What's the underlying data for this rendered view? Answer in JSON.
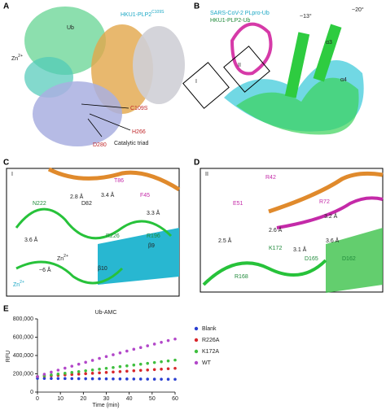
{
  "panels": [
    {
      "label": "A",
      "texts": [
        "Ub",
        "HKU1-PLP2",
        "C109S",
        "Zn",
        "2+",
        "C109S",
        "H266",
        "D280",
        "Catalytic triad"
      ]
    },
    {
      "label": "B",
      "texts": [
        "SARS-CoV-2 PLpro-Ub",
        "HKU1-PLP2-Ub",
        "~13°",
        "~20°",
        "α3",
        "α4",
        "I",
        "II"
      ]
    },
    {
      "label": "C",
      "texts": [
        "I",
        "T86",
        "2.8 Å",
        "3.4 Å",
        "D82",
        "F45",
        "3.3 Å",
        "N222",
        "R226",
        "R196",
        "β9",
        "Zn",
        "2+",
        "~6 Å",
        "β10",
        "Zn",
        "2+",
        "3.6 Å"
      ]
    },
    {
      "label": "D",
      "texts": [
        "II",
        "R42",
        "R72",
        "E51",
        "3.2 Å",
        "2.6 Å",
        "2.5 Å",
        "K172",
        "3.1 Å",
        "3.6 Å",
        "D165",
        "D162",
        "R168"
      ]
    }
  ],
  "chart_data": {
    "label": "E",
    "type": "line",
    "title": "Ub-AMC",
    "x_label": "Time (min)",
    "y_label": "RFU",
    "x": [
      0,
      3,
      6,
      9,
      12,
      15,
      18,
      21,
      24,
      27,
      30,
      33,
      36,
      39,
      42,
      45,
      48,
      51,
      54,
      57,
      60
    ],
    "series": [
      {
        "name": "Blank",
        "color": "#2a3fd1",
        "values": [
          150000,
          149500,
          149000,
          148500,
          148000,
          147500,
          147000,
          146500,
          146000,
          145500,
          145000,
          144500,
          144000,
          143500,
          143000,
          142500,
          142000,
          141500,
          141000,
          140500,
          140000
        ]
      },
      {
        "name": "R226A",
        "color": "#d8262b",
        "values": [
          170000,
          174500,
          179000,
          183500,
          188000,
          192500,
          197000,
          201500,
          206000,
          210500,
          215000,
          219500,
          224000,
          228500,
          233000,
          237500,
          242000,
          246500,
          251000,
          255500,
          260000
        ]
      },
      {
        "name": "K172A",
        "color": "#3fbf3f",
        "values": [
          170000,
          179000,
          188000,
          197000,
          206000,
          215000,
          224000,
          233000,
          242000,
          251000,
          260000,
          269000,
          278000,
          287000,
          296000,
          305000,
          314000,
          323000,
          332000,
          341000,
          350000
        ]
      },
      {
        "name": "WT",
        "color": "#b247c9",
        "values": [
          170000,
          195000,
          218000,
          240000,
          262000,
          283000,
          305000,
          326000,
          347000,
          368000,
          388000,
          408000,
          428000,
          448000,
          468000,
          487000,
          506000,
          525000,
          544000,
          563000,
          580000
        ]
      }
    ],
    "xlim": [
      0,
      60
    ],
    "xticks": [
      0,
      10,
      20,
      30,
      40,
      50,
      60
    ],
    "ylim": [
      0,
      800000
    ],
    "yticks": [
      0,
      {
        "value": 200000,
        "label": "200,000"
      },
      {
        "value": 400000,
        "label": "400,000"
      },
      {
        "value": 600000,
        "label": "600,000"
      },
      {
        "value": 800000,
        "label": "800,000"
      }
    ],
    "legend": "right",
    "grid": false
  }
}
